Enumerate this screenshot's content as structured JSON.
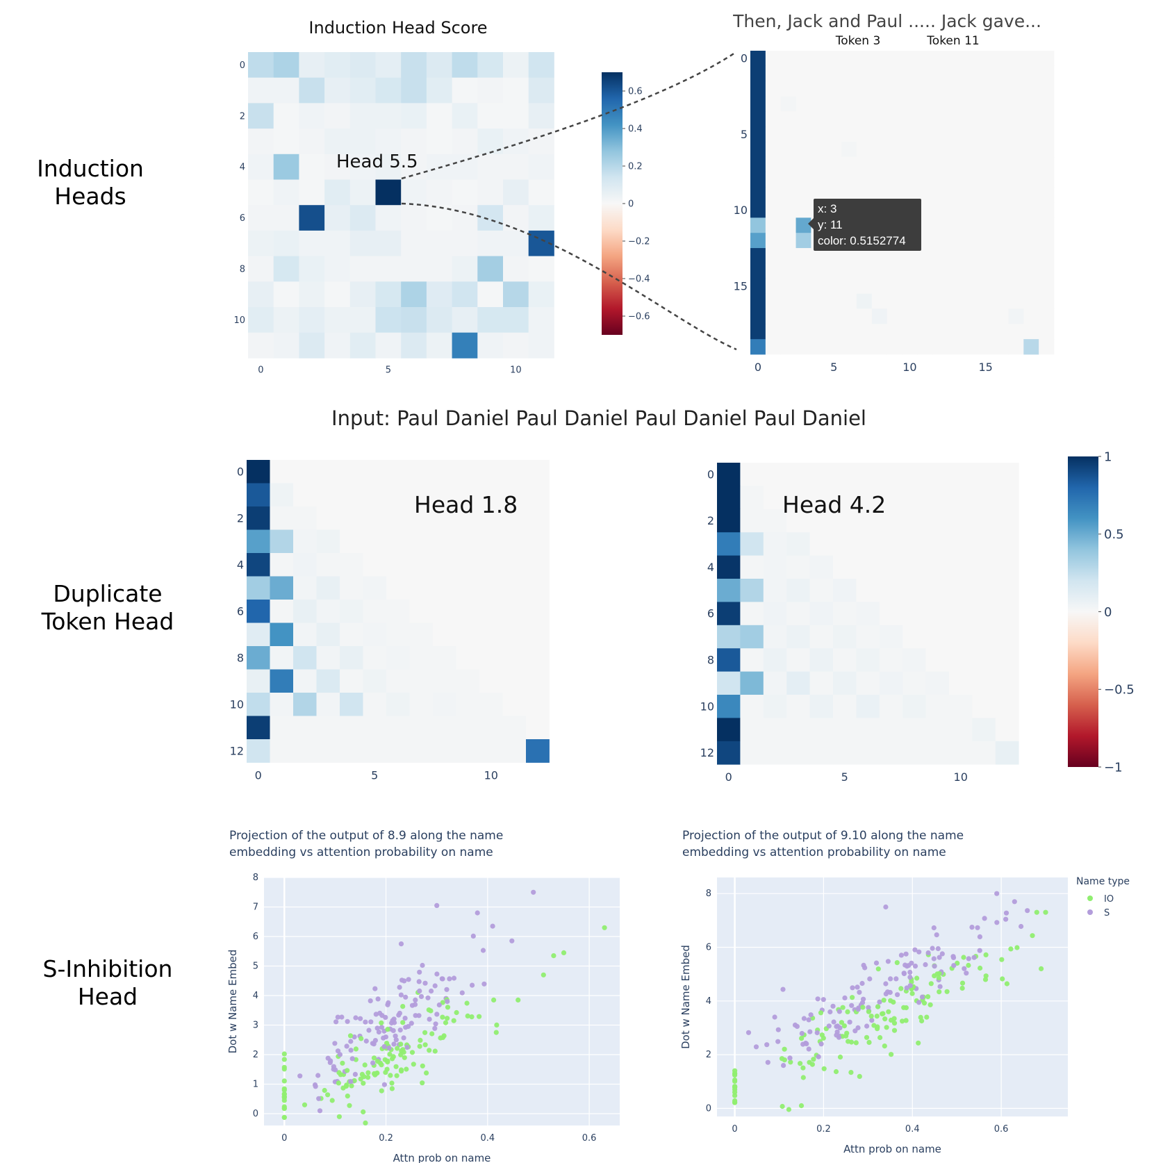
{
  "row_labels": {
    "induction": [
      "Induction",
      "Heads"
    ],
    "duplicate": [
      "Duplicate",
      "Token Head"
    ],
    "s_inhibition": [
      "S-Inhibition",
      "Head"
    ]
  },
  "induction_score_title": "Induction Head Score",
  "head_5_5_label": "Head 5.5",
  "attention_sentence": "Then, Jack and Paul ..... Jack gave...",
  "token_labels": [
    "Token 3",
    "Token 11"
  ],
  "tooltip": {
    "x": "x: 3",
    "y": "y: 11",
    "color": "color: 0.5152774"
  },
  "duplicate_input": "Input: Paul Daniel Paul Daniel Paul Daniel Paul Daniel",
  "head_1_8_label": "Head 1.8",
  "head_4_2_label": "Head 4.2",
  "colors": {
    "ordinal_scale": [
      "#67001f",
      "#b2182b",
      "#d6604d",
      "#f4a582",
      "#fddbc7",
      "#f7f7f7",
      "#d1e5f0",
      "#92c5de",
      "#4393c3",
      "#2166ac",
      "#053061"
    ],
    "io_points": "#90ee70",
    "s_points": "#b39ddb",
    "plot_bg": "#e5ecf6"
  },
  "chart_data": [
    {
      "id": "induction_scores",
      "type": "heatmap",
      "title": "Induction Head Score",
      "x_ticks": [
        "0",
        "5",
        "10"
      ],
      "y_ticks": [
        "0",
        "2",
        "4",
        "6",
        "8",
        "10"
      ],
      "colorbar": {
        "range": [
          -0.7,
          0.7
        ],
        "ticks": [
          "0.6",
          "0.4",
          "0.2",
          "0",
          "−0.2",
          "−0.4",
          "−0.6"
        ]
      },
      "z": [
        [
          0.18,
          0.22,
          0.06,
          0.08,
          0.1,
          0.07,
          0.16,
          0.1,
          0.18,
          0.12,
          0.04,
          0.14
        ],
        [
          0.03,
          0.03,
          0.16,
          0.06,
          0.08,
          0.12,
          0.16,
          0.08,
          0.01,
          0.02,
          0.01,
          0.1
        ],
        [
          0.16,
          0.01,
          0.03,
          0.02,
          0.04,
          0.04,
          0.05,
          0.01,
          0.05,
          0.01,
          0.01,
          0.06
        ],
        [
          0.02,
          0.01,
          0.02,
          0.04,
          0.04,
          0.03,
          0.02,
          0.01,
          0.02,
          0.05,
          0.03,
          0.02
        ],
        [
          0.03,
          0.26,
          0.01,
          0.02,
          0.03,
          0.04,
          0.02,
          0.03,
          0.03,
          0.02,
          0.02,
          0.03
        ],
        [
          0.01,
          0.03,
          0.01,
          0.08,
          0.04,
          0.7,
          0.03,
          0.02,
          0.01,
          0.02,
          0.06,
          0.01
        ],
        [
          0.02,
          0.02,
          0.62,
          0.06,
          0.1,
          0.03,
          0.02,
          0.01,
          0.02,
          0.13,
          0.02,
          0.05
        ],
        [
          0.04,
          0.05,
          0.03,
          0.03,
          0.06,
          0.06,
          0.02,
          0.02,
          0.02,
          0.03,
          0.03,
          0.6
        ],
        [
          0.02,
          0.12,
          0.05,
          0.03,
          0.02,
          0.02,
          0.02,
          0.02,
          0.04,
          0.24,
          0.02,
          0.01
        ],
        [
          0.06,
          0.01,
          0.04,
          0.01,
          0.06,
          0.12,
          0.22,
          0.09,
          0.14,
          0.01,
          0.2,
          0.05
        ],
        [
          0.08,
          0.04,
          0.07,
          0.04,
          0.04,
          0.15,
          0.16,
          0.1,
          0.06,
          0.12,
          0.12,
          0.03
        ],
        [
          0.02,
          0.03,
          0.1,
          0.03,
          0.08,
          0.03,
          0.1,
          0.04,
          0.48,
          0.03,
          0.02,
          0.03
        ]
      ]
    },
    {
      "id": "head_5_5_attention",
      "type": "heatmap",
      "size": 20,
      "x_ticks": [
        "0",
        "5",
        "10",
        "15"
      ],
      "y_ticks": [
        "0",
        "5",
        "10",
        "15"
      ],
      "column0": [
        0.95,
        0.95,
        0.95,
        0.95,
        0.95,
        0.95,
        0.95,
        0.95,
        0.95,
        0.95,
        0.95,
        0.4,
        0.55,
        0.95,
        0.95,
        0.95,
        0.95,
        0.95,
        0.95,
        0.7
      ],
      "other_cells": [
        {
          "x": 3,
          "y": 11,
          "v": 0.5152774
        },
        {
          "x": 3,
          "y": 12,
          "v": 0.35
        },
        {
          "x": 18,
          "y": 19,
          "v": 0.28
        },
        {
          "x": 7,
          "y": 16,
          "v": 0.05
        },
        {
          "x": 8,
          "y": 17,
          "v": 0.04
        },
        {
          "x": 17,
          "y": 17,
          "v": 0.03
        },
        {
          "x": 2,
          "y": 3,
          "v": 0.02
        },
        {
          "x": 6,
          "y": 6,
          "v": 0.02
        }
      ]
    },
    {
      "id": "head_1_8",
      "type": "heatmap",
      "size": 13,
      "x_ticks": [
        "0",
        "5",
        "10"
      ],
      "y_ticks": [
        "0",
        "2",
        "4",
        "6",
        "8",
        "10",
        "12"
      ],
      "z": [
        [
          1.0,
          0,
          0,
          0,
          0,
          0,
          0,
          0,
          0,
          0,
          0,
          0,
          0
        ],
        [
          0.85,
          0.05,
          0,
          0,
          0,
          0,
          0,
          0,
          0,
          0,
          0,
          0,
          0
        ],
        [
          0.95,
          0.02,
          0.02,
          0,
          0,
          0,
          0,
          0,
          0,
          0,
          0,
          0,
          0
        ],
        [
          0.55,
          0.3,
          0.03,
          0.05,
          0,
          0,
          0,
          0,
          0,
          0,
          0,
          0,
          0
        ],
        [
          0.92,
          0.02,
          0.04,
          0.02,
          0.02,
          0,
          0,
          0,
          0,
          0,
          0,
          0,
          0
        ],
        [
          0.35,
          0.5,
          0.03,
          0.08,
          0.02,
          0.03,
          0,
          0,
          0,
          0,
          0,
          0,
          0
        ],
        [
          0.8,
          0.02,
          0.08,
          0.03,
          0.05,
          0.02,
          0.02,
          0,
          0,
          0,
          0,
          0,
          0
        ],
        [
          0.12,
          0.6,
          0.03,
          0.08,
          0.02,
          0.03,
          0.02,
          0.02,
          0,
          0,
          0,
          0,
          0
        ],
        [
          0.5,
          0.03,
          0.2,
          0.03,
          0.08,
          0.02,
          0.03,
          0.02,
          0.02,
          0,
          0,
          0,
          0
        ],
        [
          0.08,
          0.7,
          0.03,
          0.15,
          0.02,
          0.05,
          0.02,
          0.02,
          0.02,
          0.02,
          0,
          0,
          0
        ],
        [
          0.25,
          0.03,
          0.3,
          0.03,
          0.2,
          0.02,
          0.05,
          0.02,
          0.03,
          0.02,
          0.02,
          0,
          0
        ],
        [
          0.95,
          0.02,
          0.02,
          0.02,
          0.02,
          0.02,
          0.02,
          0.02,
          0.02,
          0.02,
          0.02,
          0.02,
          0
        ],
        [
          0.2,
          0.02,
          0.02,
          0.02,
          0.02,
          0.02,
          0.02,
          0.02,
          0.02,
          0.02,
          0.02,
          0.02,
          0.75
        ]
      ]
    },
    {
      "id": "head_4_2",
      "type": "heatmap",
      "size": 13,
      "x_ticks": [
        "0",
        "5",
        "10"
      ],
      "y_ticks": [
        "0",
        "2",
        "4",
        "6",
        "8",
        "10",
        "12"
      ],
      "colorbar": {
        "range": [
          -1,
          1
        ],
        "ticks": [
          "1",
          "0.5",
          "0",
          "−0.5",
          "−1"
        ]
      },
      "z": [
        [
          1.0,
          0,
          0,
          0,
          0,
          0,
          0,
          0,
          0,
          0,
          0,
          0,
          0
        ],
        [
          1.0,
          0.02,
          0,
          0,
          0,
          0,
          0,
          0,
          0,
          0,
          0,
          0,
          0
        ],
        [
          1.0,
          0.02,
          0.02,
          0,
          0,
          0,
          0,
          0,
          0,
          0,
          0,
          0,
          0
        ],
        [
          0.7,
          0.2,
          0.03,
          0.05,
          0,
          0,
          0,
          0,
          0,
          0,
          0,
          0,
          0
        ],
        [
          0.98,
          0.02,
          0.03,
          0.02,
          0.03,
          0,
          0,
          0,
          0,
          0,
          0,
          0,
          0
        ],
        [
          0.5,
          0.3,
          0.03,
          0.06,
          0.02,
          0.04,
          0,
          0,
          0,
          0,
          0,
          0,
          0
        ],
        [
          0.95,
          0.02,
          0.04,
          0.02,
          0.04,
          0.02,
          0.03,
          0,
          0,
          0,
          0,
          0,
          0
        ],
        [
          0.3,
          0.35,
          0.03,
          0.06,
          0.02,
          0.05,
          0.02,
          0.03,
          0,
          0,
          0,
          0,
          0
        ],
        [
          0.85,
          0.02,
          0.06,
          0.02,
          0.06,
          0.02,
          0.05,
          0.02,
          0.03,
          0,
          0,
          0,
          0
        ],
        [
          0.2,
          0.45,
          0.03,
          0.1,
          0.02,
          0.06,
          0.02,
          0.04,
          0.02,
          0.03,
          0,
          0,
          0
        ],
        [
          0.65,
          0.02,
          0.05,
          0.02,
          0.06,
          0.02,
          0.07,
          0.02,
          0.05,
          0.02,
          0.02,
          0,
          0
        ],
        [
          1.0,
          0.02,
          0.02,
          0.02,
          0.02,
          0.02,
          0.02,
          0.02,
          0.02,
          0.02,
          0.02,
          0.05,
          0
        ],
        [
          0.92,
          0.02,
          0.02,
          0.02,
          0.02,
          0.02,
          0.02,
          0.02,
          0.02,
          0.02,
          0.02,
          0.02,
          0.08
        ]
      ]
    },
    {
      "id": "proj_8_9",
      "type": "scatter",
      "title": "Projection of the output of 8.9 along the name embedding vs attention probability on name",
      "title_lines": [
        "Projection of the output of 8.9 along the name",
        "embedding vs attention probability on name"
      ],
      "xlabel": "Attn prob on name",
      "ylabel": "Dot w Name Embed",
      "xlim": [
        -0.04,
        0.66
      ],
      "ylim": [
        -0.4,
        8.0
      ],
      "x_ticks": [
        0,
        0.2,
        0.4,
        0.6
      ],
      "x_tick_labels": [
        "0",
        "0.2",
        "0.4",
        "0.6"
      ],
      "y_ticks": [
        0,
        1,
        2,
        3,
        4,
        5,
        6,
        7,
        8
      ],
      "y_tick_labels": [
        "0",
        "1",
        "2",
        "3",
        "4",
        "5",
        "6",
        "7",
        "8"
      ],
      "cluster": {
        "x_mean": 0.2,
        "x_sd": 0.09,
        "slope": 10.5,
        "intercept": 0.2,
        "noise": 0.6
      },
      "zero_column": {
        "x": 0,
        "y_range": [
          -0.2,
          2.3
        ],
        "count": 18
      },
      "outliers": [
        {
          "s": "S",
          "x": 0.3,
          "y": 7.05
        },
        {
          "s": "S",
          "x": 0.49,
          "y": 7.5
        },
        {
          "s": "S",
          "x": 0.38,
          "y": 6.8
        },
        {
          "s": "S",
          "x": 0.41,
          "y": 6.35
        },
        {
          "s": "S",
          "x": 0.23,
          "y": 5.75
        },
        {
          "s": "IO",
          "x": 0.63,
          "y": 6.3
        },
        {
          "s": "IO",
          "x": 0.55,
          "y": 5.45
        },
        {
          "s": "IO",
          "x": 0.53,
          "y": 5.35
        },
        {
          "s": "IO",
          "x": 0.51,
          "y": 4.7
        },
        {
          "s": "IO",
          "x": 0.46,
          "y": 3.85
        },
        {
          "s": "S",
          "x": 0.07,
          "y": 0.1
        },
        {
          "s": "IO",
          "x": 0.04,
          "y": 0.3
        }
      ],
      "series": [
        {
          "name": "IO"
        },
        {
          "name": "S"
        }
      ]
    },
    {
      "id": "proj_9_10",
      "type": "scatter",
      "title": "Projection of the output of 9.10 along the name embedding vs attention probability on name",
      "title_lines": [
        "Projection of the output of 9.10 along the name",
        "embedding vs attention probability on name"
      ],
      "xlabel": "Attn prob on name",
      "ylabel": "Dot w Name Embed",
      "legend_title": "Name type",
      "legend_position": "top-right",
      "xlim": [
        -0.04,
        0.75
      ],
      "ylim": [
        -0.3,
        8.6
      ],
      "x_ticks": [
        0,
        0.2,
        0.4,
        0.6
      ],
      "x_tick_labels": [
        "0",
        "0.2",
        "0.4",
        "0.6"
      ],
      "y_ticks": [
        0,
        2,
        4,
        6,
        8
      ],
      "y_tick_labels": [
        "0",
        "2",
        "4",
        "6",
        "8"
      ],
      "cluster": {
        "x_mean": 0.33,
        "x_sd": 0.14,
        "slope": 8.2,
        "intercept": 1.1,
        "noise": 0.75
      },
      "zero_column": {
        "x": 0,
        "y_range": [
          0.1,
          1.5
        ],
        "count": 16
      },
      "outliers": [
        {
          "s": "S",
          "x": 0.59,
          "y": 8.0
        },
        {
          "s": "S",
          "x": 0.63,
          "y": 7.7
        },
        {
          "s": "S",
          "x": 0.34,
          "y": 7.5
        },
        {
          "s": "IO",
          "x": 0.68,
          "y": 7.3
        },
        {
          "s": "IO",
          "x": 0.7,
          "y": 7.3
        },
        {
          "s": "IO",
          "x": 0.69,
          "y": 5.2
        },
        {
          "s": "S",
          "x": 0.09,
          "y": 3.4
        },
        {
          "s": "IO",
          "x": 0.15,
          "y": 0.1
        }
      ],
      "series": [
        {
          "name": "IO"
        },
        {
          "name": "S"
        }
      ]
    }
  ]
}
